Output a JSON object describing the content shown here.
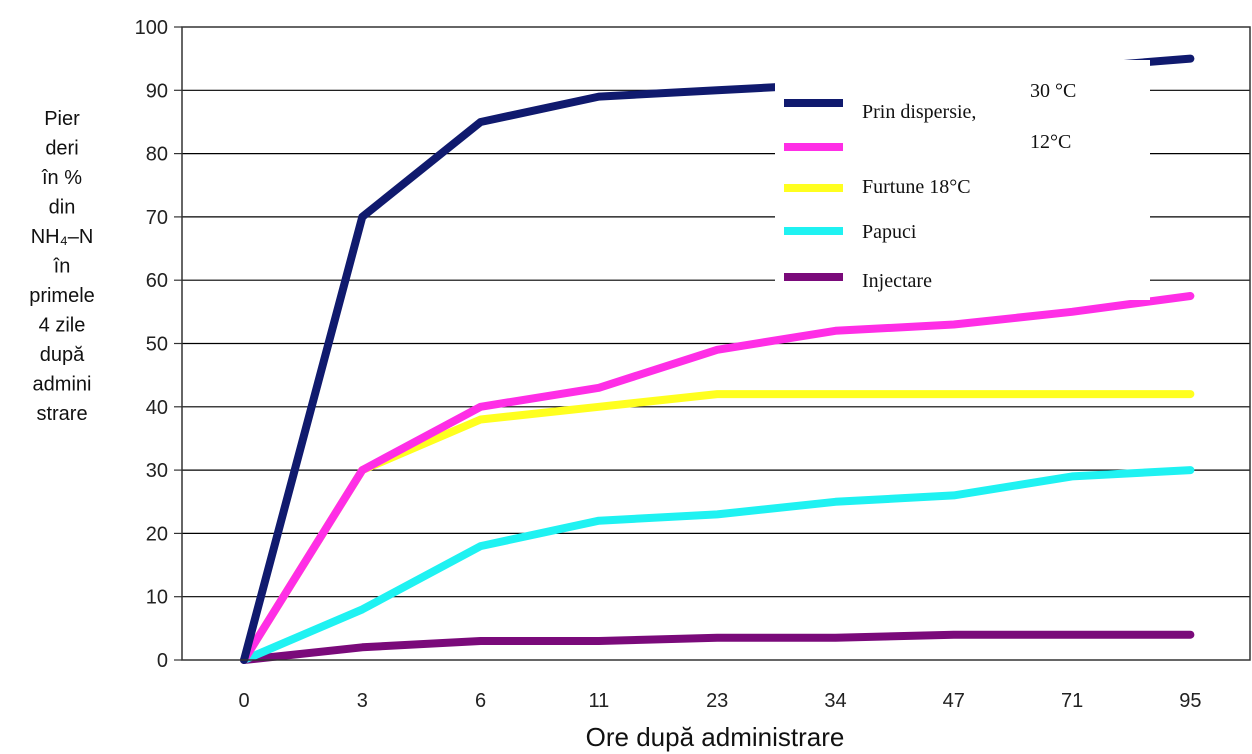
{
  "chart_data": {
    "type": "line",
    "categories": [
      "0",
      "3",
      "6",
      "11",
      "23",
      "34",
      "47",
      "71",
      "95"
    ],
    "xlabel": "Ore după administrare",
    "ylabel_lines": [
      "Pier",
      "deri",
      "în %",
      "din",
      "NH₄–N",
      "în",
      "primele",
      "4 zile",
      "după",
      "admini",
      "strare"
    ],
    "ylim": [
      0,
      100
    ],
    "yticks": [
      0,
      10,
      20,
      30,
      40,
      50,
      60,
      70,
      80,
      90,
      100
    ],
    "grid": "horizontal",
    "legend_position": "top-right",
    "series": [
      {
        "name": "Prin dispersie, 30 °C",
        "color": "#101a6e",
        "values": [
          0,
          70,
          85,
          89,
          90,
          91,
          92,
          93.5,
          95
        ]
      },
      {
        "name": "12°C",
        "color": "#ff2ee6",
        "values": [
          0,
          30,
          40,
          43,
          49,
          52,
          53,
          55,
          57.5
        ]
      },
      {
        "name": "Furtune 18°C",
        "color": "#ffff1f",
        "values": [
          0,
          30,
          38,
          40,
          42,
          42,
          42,
          42,
          42
        ]
      },
      {
        "name": "Papuci",
        "color": "#1ff2f2",
        "values": [
          0,
          8,
          18,
          22,
          23,
          25,
          26,
          29,
          30
        ]
      },
      {
        "name": "Injectare",
        "color": "#7a0a7a",
        "values": [
          0,
          2,
          3,
          3,
          3.5,
          3.5,
          4,
          4,
          4
        ]
      }
    ],
    "legend": {
      "line1": "Prin dispersie,",
      "line1_suffix": "30 °C",
      "line2": "12°C",
      "line3": "Furtune 18°C",
      "line4": "Papuci",
      "line5": "Injectare"
    }
  }
}
